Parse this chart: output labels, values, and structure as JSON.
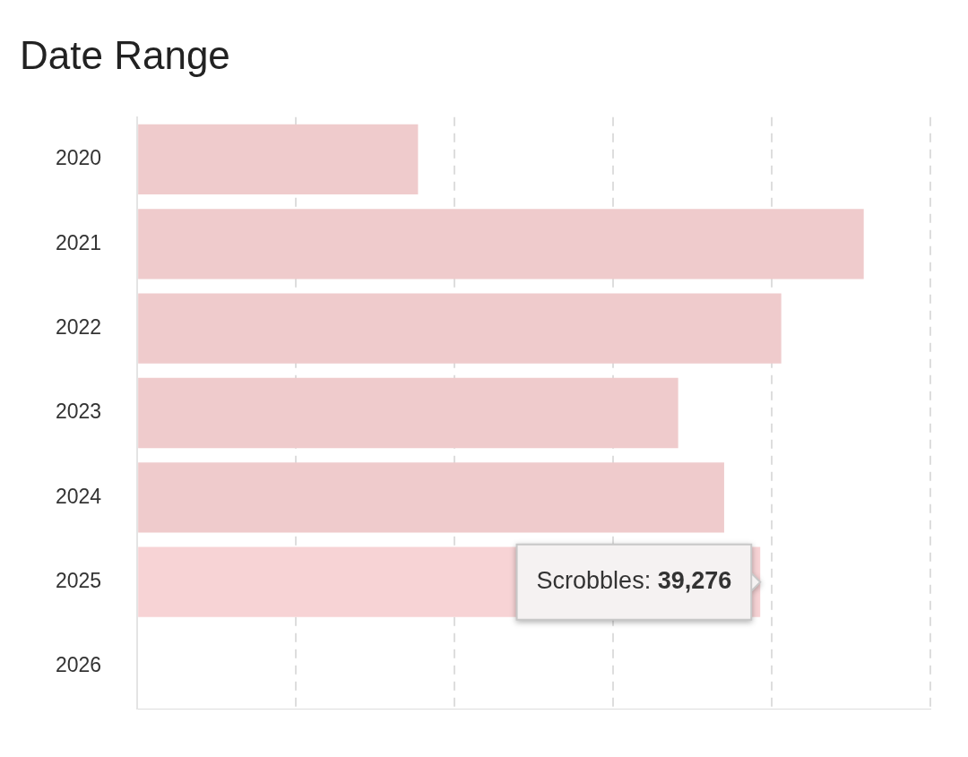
{
  "chart_data": {
    "type": "bar",
    "orientation": "horizontal",
    "title": "Date Range",
    "categories": [
      "2020",
      "2021",
      "2022",
      "2023",
      "2024",
      "2025",
      "2026"
    ],
    "series": [
      {
        "name": "Scrobbles:",
        "colors": [
          "#efcbcc",
          "#efcbcc",
          "#efcbcc",
          "#efcbcc",
          "#efcbcc",
          "#f7d3d5",
          "#efcbcc"
        ],
        "values": [
          17700,
          45800,
          40600,
          34100,
          37000,
          39276,
          0
        ],
        "value_labels": [
          null,
          null,
          null,
          null,
          null,
          "39,276",
          null
        ]
      }
    ],
    "xlim": [
      0,
      50000
    ],
    "xticks": [
      {
        "value": 0,
        "label": null
      },
      {
        "value": 10000,
        "label": null
      },
      {
        "value": 20000,
        "label": null
      },
      {
        "value": 30000,
        "label": null
      },
      {
        "value": 40000,
        "label": null
      },
      {
        "value": 50000,
        "label": null
      }
    ],
    "grid": "x",
    "tick_labels": "y",
    "legend": false
  }
}
